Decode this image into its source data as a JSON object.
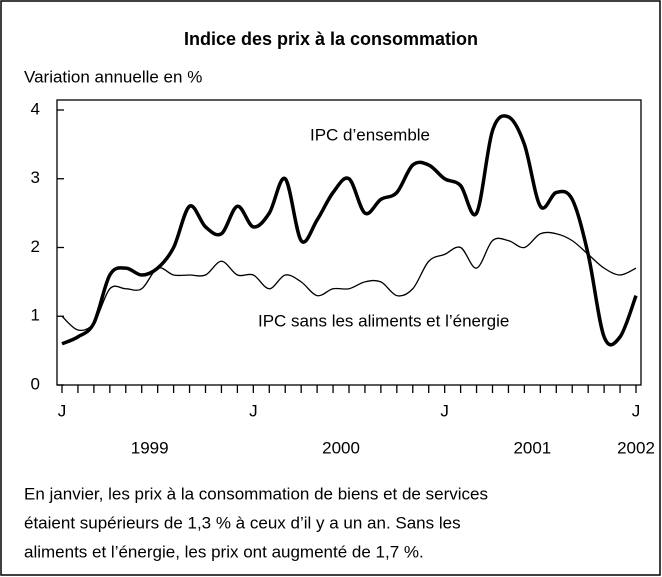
{
  "chart_data": {
    "type": "line",
    "title": "Indice des prix à la consommation",
    "y_label": "Variation annuelle en %",
    "categories": [
      "J",
      null,
      null,
      null,
      null,
      null,
      null,
      null,
      null,
      null,
      null,
      null,
      "J",
      null,
      null,
      null,
      null,
      null,
      null,
      null,
      null,
      null,
      null,
      null,
      "J",
      null,
      null,
      null,
      null,
      null,
      null,
      null,
      null,
      null,
      null,
      null,
      "J"
    ],
    "year_labels": [
      "1999",
      "2000",
      "2001",
      "2002"
    ],
    "series": [
      {
        "name": "IPC d’ensemble",
        "color": "#000000",
        "width": 3.5,
        "values": [
          0.6,
          0.7,
          0.9,
          1.6,
          1.7,
          1.6,
          1.7,
          2.0,
          2.6,
          2.3,
          2.2,
          2.6,
          2.3,
          2.5,
          3.0,
          2.1,
          2.4,
          2.8,
          3.0,
          2.5,
          2.7,
          2.8,
          3.2,
          3.2,
          3.0,
          2.9,
          2.5,
          3.7,
          3.9,
          3.5,
          2.6,
          2.8,
          2.7,
          1.9,
          0.7,
          0.7,
          1.3
        ]
      },
      {
        "name": "IPC sans les aliments et l’énergie",
        "color": "#000000",
        "width": 1.3,
        "values": [
          1.0,
          0.8,
          0.9,
          1.4,
          1.4,
          1.4,
          1.7,
          1.6,
          1.6,
          1.6,
          1.8,
          1.6,
          1.6,
          1.4,
          1.6,
          1.5,
          1.3,
          1.4,
          1.4,
          1.5,
          1.5,
          1.3,
          1.4,
          1.8,
          1.9,
          2.0,
          1.7,
          2.1,
          2.1,
          2.0,
          2.2,
          2.2,
          2.1,
          1.9,
          1.7,
          1.6,
          1.7
        ]
      }
    ],
    "ylim": [
      0,
      4
    ],
    "yticks": [
      0,
      1,
      2,
      3,
      4
    ],
    "grid": false,
    "note": [
      "En janvier, les prix à la consommation de biens et de services",
      "étaient supérieurs de 1,3 % à ceux d’il y a un an. Sans les",
      "aliments et l’énergie, les prix ont augmenté de 1,7 %."
    ]
  }
}
